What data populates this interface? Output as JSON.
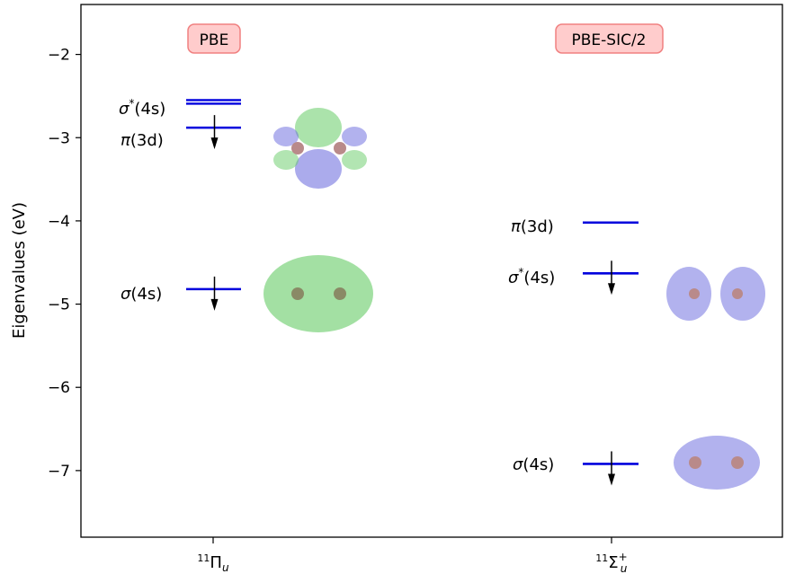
{
  "chart_data": {
    "type": "energy-level diagram",
    "ylabel": "Eigenvalues (eV)",
    "ylim": [
      -7.8,
      -1.4
    ],
    "yticks": [
      -7,
      -6,
      -5,
      -4,
      -3,
      -2
    ],
    "ytick_labels": [
      "−7",
      "−6",
      "−5",
      "−4",
      "−3",
      "−2"
    ],
    "grid": false,
    "line_color": "#0000dd",
    "columns": [
      {
        "method_label": "PBE",
        "state_label": {
          "sup": "11",
          "main": "Π",
          "sub": "u",
          "charge": ""
        },
        "levels": [
          {
            "label_sym": "σ",
            "label_sup": "*",
            "label_rest": "(4s)",
            "value": -2.57,
            "double": true,
            "occupied": false
          },
          {
            "label_sym": "π",
            "label_sup": "",
            "label_rest": "(3d)",
            "value": -2.88,
            "double": false,
            "occupied": true
          },
          {
            "label_sym": "σ",
            "label_sup": "",
            "label_rest": "(4s)",
            "value": -4.82,
            "double": false,
            "occupied": true
          }
        ]
      },
      {
        "method_label": "PBE-SIC/2",
        "state_label": {
          "sup": "11",
          "main": "Σ",
          "sub": "u",
          "charge": "+"
        },
        "levels": [
          {
            "label_sym": "π",
            "label_sup": "",
            "label_rest": "(3d)",
            "value": -4.02,
            "double": false,
            "occupied": false
          },
          {
            "label_sym": "σ",
            "label_sup": "*",
            "label_rest": "(4s)",
            "value": -4.63,
            "double": false,
            "occupied": true
          },
          {
            "label_sym": "σ",
            "label_sup": "",
            "label_rest": "(4s)",
            "value": -6.92,
            "double": false,
            "occupied": true
          }
        ]
      }
    ],
    "label_box_fill": "#ffcccc",
    "label_box_stroke": "#f08080",
    "orbital_colors": {
      "positive": "#66cc66",
      "negative": "#6666dd",
      "atom": "#b98a8a"
    }
  }
}
